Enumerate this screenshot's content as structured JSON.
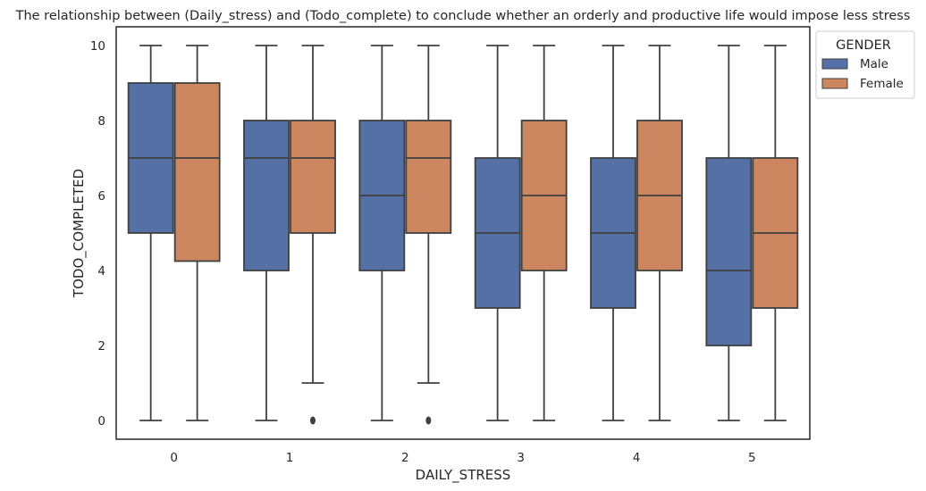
{
  "chart_data": {
    "type": "box",
    "title": "The relationship between (Daily_stress) and (Todo_complete) to conclude whether an orderly and productive life would impose less stress",
    "xlabel": "DAILY_STRESS",
    "ylabel": "TODO_COMPLETED",
    "categories": [
      "0",
      "1",
      "2",
      "3",
      "4",
      "5"
    ],
    "ylim": [
      -0.5,
      10.5
    ],
    "yticks": [
      0,
      2,
      4,
      6,
      8,
      10
    ],
    "grid": false,
    "legend": {
      "title": "GENDER",
      "placement": "outside-top-right"
    },
    "series": [
      {
        "name": "Male",
        "color": "#5470a5",
        "boxes": [
          {
            "whislo": 0,
            "q1": 5,
            "med": 7,
            "q3": 9,
            "whishi": 10,
            "fliers": []
          },
          {
            "whislo": 0,
            "q1": 4,
            "med": 7,
            "q3": 8,
            "whishi": 10,
            "fliers": []
          },
          {
            "whislo": 0,
            "q1": 4,
            "med": 6,
            "q3": 8,
            "whishi": 10,
            "fliers": []
          },
          {
            "whislo": 0,
            "q1": 3,
            "med": 5,
            "q3": 7,
            "whishi": 10,
            "fliers": []
          },
          {
            "whislo": 0,
            "q1": 3,
            "med": 5,
            "q3": 7,
            "whishi": 10,
            "fliers": []
          },
          {
            "whislo": 0,
            "q1": 2,
            "med": 4,
            "q3": 7,
            "whishi": 10,
            "fliers": []
          }
        ]
      },
      {
        "name": "Female",
        "color": "#cd8760",
        "boxes": [
          {
            "whislo": 0,
            "q1": 4.25,
            "med": 7,
            "q3": 9,
            "whishi": 10,
            "fliers": []
          },
          {
            "whislo": 1,
            "q1": 5,
            "med": 7,
            "q3": 8,
            "whishi": 10,
            "fliers": [
              0
            ]
          },
          {
            "whislo": 1,
            "q1": 5,
            "med": 7,
            "q3": 8,
            "whishi": 10,
            "fliers": [
              0
            ]
          },
          {
            "whislo": 0,
            "q1": 4,
            "med": 6,
            "q3": 8,
            "whishi": 10,
            "fliers": []
          },
          {
            "whislo": 0,
            "q1": 4,
            "med": 6,
            "q3": 8,
            "whishi": 10,
            "fliers": []
          },
          {
            "whislo": 0,
            "q1": 3,
            "med": 5,
            "q3": 7,
            "whishi": 10,
            "fliers": []
          }
        ]
      }
    ]
  }
}
